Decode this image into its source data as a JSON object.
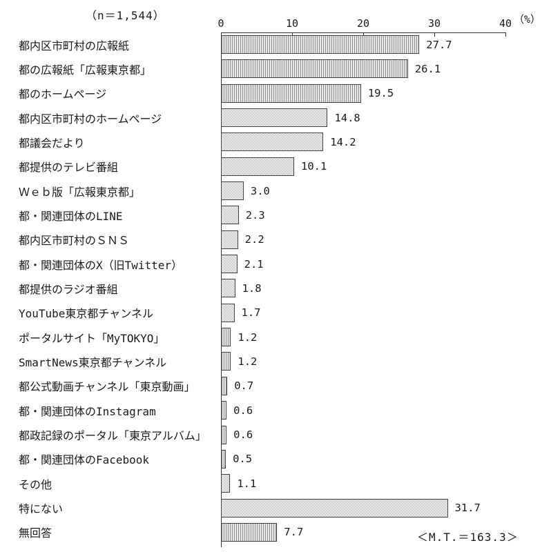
{
  "header": {
    "n_label": "（n＝1,544）",
    "unit_label": "（%）"
  },
  "chart_data": {
    "type": "bar",
    "orientation": "horizontal",
    "title": "",
    "sample_size_note": "（n＝1,544）",
    "unit": "%",
    "xlim": [
      0,
      40
    ],
    "x_ticks": [
      0,
      10,
      20,
      30,
      40
    ],
    "grid": false,
    "legend": "none",
    "categories": [
      "都内区市町村の広報紙",
      "都の広報紙「広報東京都」",
      "都のホームページ",
      "都内区市町村のホームページ",
      "都議会だより",
      "都提供のテレビ番組",
      "Ｗｅｂ版「広報東京都」",
      "都・関連団体のLINE",
      "都内区市町村のＳＮＳ",
      "都・関連団体のX（旧Twitter）",
      "都提供のラジオ番組",
      "YouTube東京都チャンネル",
      "ポータルサイト「MyTOKYO」",
      "SmartNews東京都チャンネル",
      "都公式動画チャンネル「東京動画」",
      "都・関連団体のInstagram",
      "都政記録のポータル「東京アルバム」",
      "都・関連団体のFacebook",
      "その他",
      "特にない",
      "無回答"
    ],
    "values": [
      27.7,
      26.1,
      19.5,
      14.8,
      14.2,
      10.1,
      3.0,
      2.3,
      2.2,
      2.1,
      1.8,
      1.7,
      1.2,
      1.2,
      0.7,
      0.6,
      0.6,
      0.5,
      1.1,
      31.7,
      7.7
    ],
    "values_display": [
      "27.7",
      "26.1",
      "19.5",
      "14.8",
      "14.2",
      "10.1",
      "3.0",
      "2.3",
      "2.2",
      "2.1",
      "1.8",
      "1.7",
      "1.2",
      "1.2",
      "0.7",
      "0.6",
      "0.6",
      "0.5",
      "1.1",
      "31.7",
      "7.7"
    ],
    "footer": "＜M.T.＝163.3＞",
    "bar_fill_color": "#e7e7e7",
    "bar_pattern_color": "#8f8f8f",
    "bar_border_color": "#404040"
  }
}
